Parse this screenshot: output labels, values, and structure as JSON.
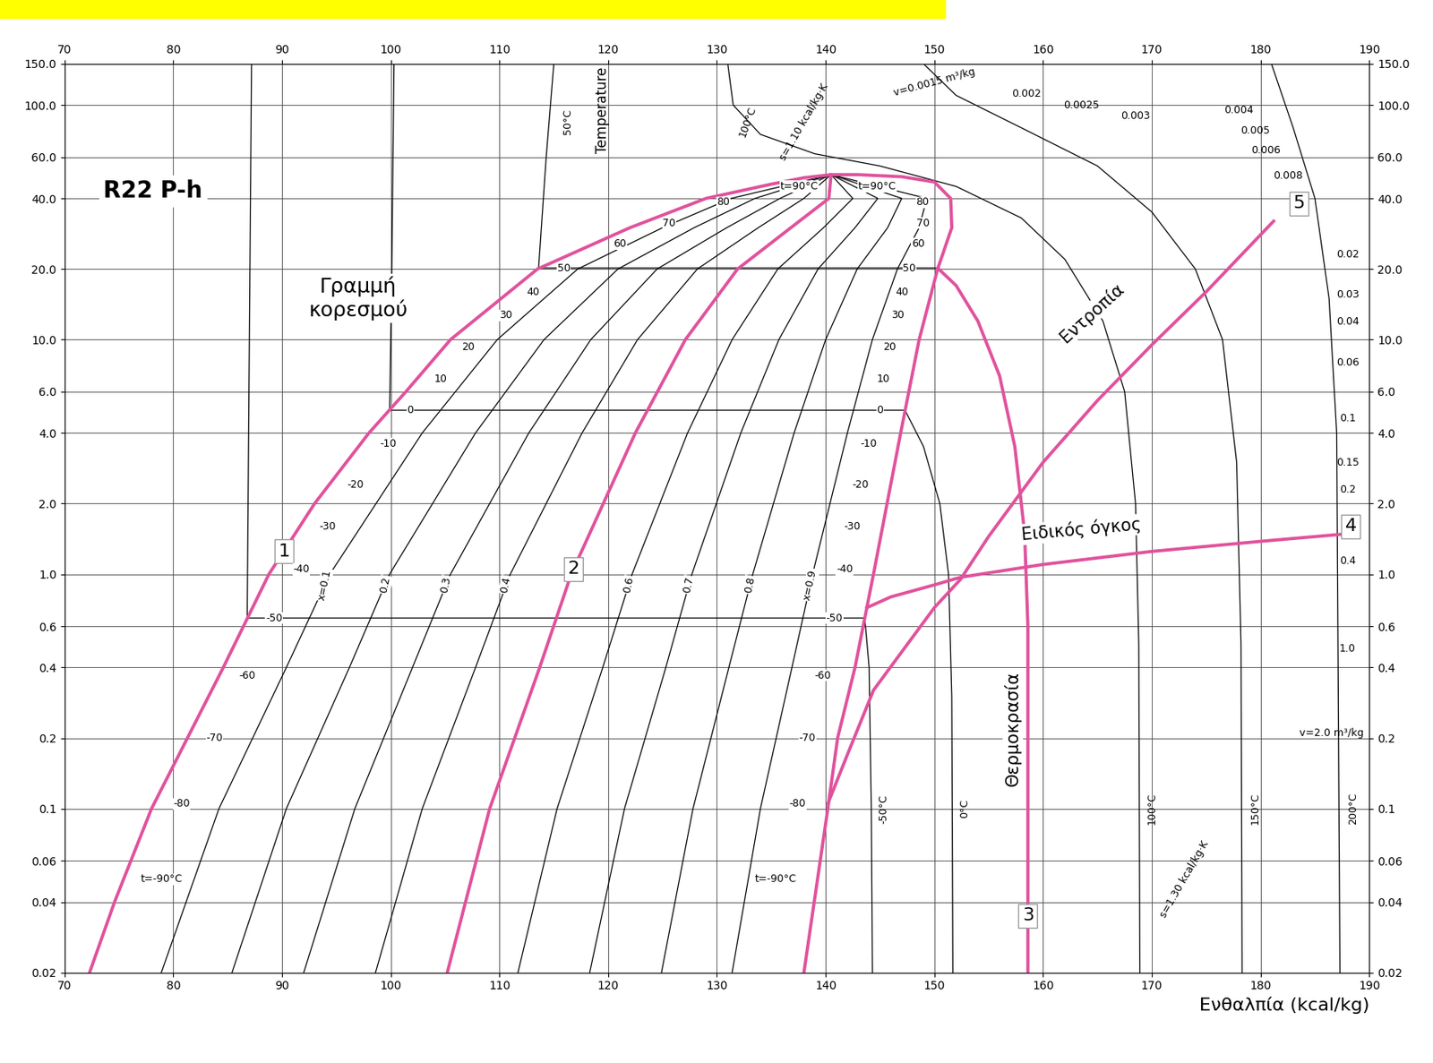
{
  "chart_data": {
    "type": "line",
    "title": "R22 P-h",
    "x_label": "Ενθαλπία (kcal/kg)",
    "log": "y",
    "grid": true,
    "xlim": [
      70,
      190
    ],
    "xticks": [
      70,
      80,
      90,
      100,
      110,
      120,
      130,
      140,
      150,
      160,
      170,
      180,
      190
    ],
    "ylim": [
      0.02,
      150
    ],
    "yticks": [
      0.02,
      0.04,
      0.06,
      0.1,
      0.2,
      0.4,
      0.6,
      {
        "value": 1,
        "label": "1.0"
      },
      {
        "value": 2,
        "label": "2.0"
      },
      {
        "value": 4,
        "label": "4.0"
      },
      {
        "value": 6,
        "label": "6.0"
      },
      {
        "value": 10,
        "label": "10.0"
      },
      {
        "value": 20,
        "label": "20.0"
      },
      {
        "value": 40,
        "label": "40.0"
      },
      {
        "value": 60,
        "label": "60.0"
      },
      {
        "value": 100,
        "label": "100.0"
      },
      {
        "value": 150,
        "label": "150.0"
      }
    ],
    "series": [
      {
        "color": "#e0529c",
        "x": [
          72.3,
          74.6,
          78,
          81.3,
          84.6,
          88.8,
          93,
          98,
          101.4,
          105.5,
          113.5,
          122,
          129,
          135,
          138,
          140.5,
          143,
          147,
          150,
          151.5,
          151.6,
          150.3,
          148.6,
          146.9,
          144.4,
          142.7,
          141.1,
          140.2,
          138
        ],
        "values": [
          0.02,
          0.04,
          0.1,
          0.2,
          0.4,
          1,
          2,
          4,
          6,
          10,
          20,
          30,
          40,
          46,
          49,
          50.5,
          50.5,
          49.5,
          47,
          40,
          30,
          20,
          10,
          4,
          1,
          0.4,
          0.2,
          0.1,
          0.02
        ]
      },
      {
        "color": "#000000",
        "x": [
          78.9,
          84.2,
          90.4,
          94.4,
          102.9,
          109.8,
          117.2,
          125.0,
          131.3,
          140.5
        ],
        "values": [
          0.02,
          0.1,
          0.4,
          1,
          4,
          10,
          20,
          30,
          40,
          50.5
        ]
      },
      {
        "color": "#000000",
        "x": [
          85.4,
          90.4,
          96.2,
          99.9,
          107.8,
          114.1,
          120.9,
          127.9,
          133.5,
          140.5
        ],
        "values": [
          0.02,
          0.1,
          0.4,
          1,
          4,
          10,
          20,
          30,
          40,
          50.5
        ]
      },
      {
        "color": "#000000",
        "x": [
          92.0,
          96.7,
          102.0,
          105.5,
          112.7,
          118.4,
          124.5,
          130.9,
          135.8,
          140.5
        ],
        "values": [
          0.02,
          0.1,
          0.4,
          1,
          4,
          10,
          20,
          30,
          40,
          50.5
        ]
      },
      {
        "color": "#000000",
        "x": [
          98.6,
          102.9,
          107.8,
          111.0,
          117.6,
          122.7,
          128.2,
          133.8,
          138.0,
          140.5
        ],
        "values": [
          0.02,
          0.1,
          0.4,
          1,
          4,
          10,
          20,
          30,
          40,
          50.5
        ]
      },
      {
        "color": "#e0529c",
        "x": [
          105.2,
          109.1,
          113.7,
          116.6,
          122.5,
          127.1,
          131.9,
          136.8,
          140.3,
          140.5
        ],
        "values": [
          0.02,
          0.1,
          0.4,
          1,
          4,
          10,
          20,
          30,
          40,
          50.5
        ]
      },
      {
        "color": "#000000",
        "x": [
          111.7,
          115.3,
          119.5,
          122.2,
          127.3,
          131.4,
          135.6,
          139.8,
          142.5,
          140.5
        ],
        "values": [
          0.02,
          0.1,
          0.4,
          1,
          4,
          10,
          20,
          30,
          40,
          50.5
        ]
      },
      {
        "color": "#000000",
        "x": [
          118.3,
          121.5,
          125.3,
          127.7,
          132.2,
          135.7,
          139.3,
          142.7,
          144.8,
          140.5
        ],
        "values": [
          0.02,
          0.1,
          0.4,
          1,
          4,
          10,
          20,
          30,
          40,
          50.5
        ]
      },
      {
        "color": "#000000",
        "x": [
          124.9,
          127.8,
          131.1,
          133.3,
          137.1,
          140.0,
          142.9,
          145.7,
          147.0,
          140.5
        ],
        "values": [
          0.02,
          0.1,
          0.4,
          1,
          4,
          10,
          20,
          30,
          40,
          50.5
        ]
      },
      {
        "color": "#000000",
        "x": [
          131.4,
          134.0,
          136.9,
          138.8,
          142.0,
          144.3,
          146.6,
          148.6,
          149.3,
          140.5
        ],
        "values": [
          0.02,
          0.1,
          0.4,
          1,
          4,
          10,
          20,
          30,
          40,
          50.5
        ]
      },
      {
        "color": "#000000",
        "x": [
          87.2,
          87.0,
          86.8,
          143.6,
          144.0,
          144.2,
          144.3
        ],
        "values": [
          150,
          10,
          0.65,
          0.65,
          0.4,
          0.1,
          0.02
        ]
      },
      {
        "color": "#000000",
        "x": [
          100.3,
          100.1,
          99.9,
          147.3,
          149.0,
          150.5,
          151.3,
          151.6,
          151.7
        ],
        "values": [
          150,
          20,
          5,
          5,
          3.5,
          2,
          1,
          0.3,
          0.02
        ]
      },
      {
        "color": "#000000",
        "x": [
          115.0,
          114.3,
          113.6,
          150.3
        ],
        "values": [
          150,
          60,
          20.2,
          20.2
        ]
      },
      {
        "color": "#e0529c",
        "x": [
          150.3,
          152.0,
          154.0,
          156.0,
          157.4,
          158.3,
          158.6,
          158.6
        ],
        "values": [
          20.2,
          17,
          12,
          7,
          3.5,
          1.5,
          0.6,
          0.02
        ]
      },
      {
        "color": "#000000",
        "x": [
          131.0,
          131.5,
          134.0,
          139.0,
          145.0,
          152.0,
          158.0,
          162.0,
          165.5,
          167.5,
          168.5,
          168.8,
          168.9
        ],
        "values": [
          150,
          100,
          75,
          62,
          55,
          45,
          33,
          22,
          12,
          6,
          2,
          0.5,
          0.02
        ]
      },
      {
        "color": "#000000",
        "x": [
          149,
          152,
          158,
          165,
          170,
          174,
          176.5,
          177.8,
          178.2,
          178.3
        ],
        "values": [
          150,
          110,
          80,
          55,
          35,
          20,
          10,
          3,
          0.5,
          0.02
        ]
      },
      {
        "color": "#000000",
        "x": [
          181,
          183,
          185,
          186.3,
          187,
          187.3
        ],
        "values": [
          150,
          80,
          40,
          15,
          4,
          0.02
        ]
      },
      {
        "color": "#e0529c",
        "x": [
          143.8,
          146,
          150,
          152.4,
          160,
          170,
          180,
          187.5
        ],
        "values": [
          0.72,
          0.8,
          0.9,
          0.97,
          1.1,
          1.25,
          1.38,
          1.48
        ]
      },
      {
        "color": "#e0529c",
        "x": [
          140.2,
          142,
          144.4,
          150,
          152.4,
          155,
          160,
          165,
          170,
          175,
          181.2
        ],
        "values": [
          0.105,
          0.17,
          0.32,
          0.72,
          0.95,
          1.45,
          3.0,
          5.5,
          9.5,
          16,
          32
        ]
      }
    ],
    "annotations": [
      {
        "text": "Γραμμή\nκορεσμού",
        "x": 97,
        "y": 15
      },
      {
        "text": "1",
        "x": 90.2,
        "y": 1.25
      },
      {
        "text": "2",
        "x": 116.8,
        "y": 1.05
      },
      {
        "text": "3",
        "x": 158.6,
        "y": 0.035
      },
      {
        "text": "4",
        "x": 188.3,
        "y": 1.6
      },
      {
        "text": "5",
        "x": 183.5,
        "y": 38
      },
      {
        "text": "Θερμοκρασία",
        "x": 157.2,
        "y": 0.22
      },
      {
        "text": "Εντροπία",
        "x": 164.5,
        "y": 13
      },
      {
        "text": "Ειδικός όγκος",
        "x": 163.5,
        "y": 1.55
      },
      {
        "text": "Temperature",
        "x": 119.5,
        "y": 95
      },
      {
        "text": "50°C",
        "x": 116.3,
        "y": 85
      },
      {
        "text": "100°C",
        "x": 132.8,
        "y": 85
      },
      {
        "text": "s=1.10 kcal/kg·K",
        "x": 138,
        "y": 85
      },
      {
        "text": "v=0.0015 m³/kg",
        "x": 150,
        "y": 125
      },
      {
        "text": "0.002",
        "x": 158.5,
        "y": 112
      },
      {
        "text": "0.0025",
        "x": 163.5,
        "y": 100
      },
      {
        "text": "0.003",
        "x": 168.5,
        "y": 90
      },
      {
        "text": "0.004",
        "x": 178,
        "y": 95
      },
      {
        "text": "0.005",
        "x": 179.5,
        "y": 78
      },
      {
        "text": "0.006",
        "x": 180.5,
        "y": 64
      },
      {
        "text": "0.008",
        "x": 182.5,
        "y": 50
      },
      {
        "text": "0.02",
        "x": 188,
        "y": 23
      },
      {
        "text": "0.03",
        "x": 188,
        "y": 15.5
      },
      {
        "text": "0.04",
        "x": 188,
        "y": 11.9
      },
      {
        "text": "0.06",
        "x": 188,
        "y": 8
      },
      {
        "text": "0.1",
        "x": 188,
        "y": 4.6
      },
      {
        "text": "0.15",
        "x": 188,
        "y": 3.0
      },
      {
        "text": "0.2",
        "x": 188,
        "y": 2.3
      },
      {
        "text": "0.4",
        "x": 188,
        "y": 1.14
      },
      {
        "text": "1.0",
        "x": 188,
        "y": 0.48
      },
      {
        "text": "v=2.0 m³/kg",
        "x": 186.5,
        "y": 0.21
      },
      {
        "text": "-50°C",
        "x": 145.3,
        "y": 0.1
      },
      {
        "text": "0°C",
        "x": 152.8,
        "y": 0.1
      },
      {
        "text": "100°C",
        "x": 170,
        "y": 0.1
      },
      {
        "text": "150°C",
        "x": 179.5,
        "y": 0.1
      },
      {
        "text": "200°C",
        "x": 188.5,
        "y": 0.1
      },
      {
        "text": "s=1.30 kcal/kg·K",
        "x": 173,
        "y": 0.05
      },
      {
        "text": "x=0.1",
        "x": 93.9,
        "y": 0.9
      },
      {
        "text": "0.2",
        "x": 99.5,
        "y": 0.9
      },
      {
        "text": "0.3",
        "x": 105.1,
        "y": 0.9
      },
      {
        "text": "0.4",
        "x": 110.6,
        "y": 0.9
      },
      {
        "text": "0.6",
        "x": 121.9,
        "y": 0.9
      },
      {
        "text": "0.7",
        "x": 127.4,
        "y": 0.9
      },
      {
        "text": "0.8",
        "x": 133.0,
        "y": 0.9
      },
      {
        "text": "x=0.9",
        "x": 138.6,
        "y": 0.9
      }
    ],
    "saturation_labels_liquid": [
      {
        "text": "t=90°C",
        "x": 135.8,
        "y": 45
      },
      {
        "text": "80",
        "x": 130,
        "y": 38.5
      },
      {
        "text": "70",
        "x": 125,
        "y": 31.4
      },
      {
        "text": "60",
        "x": 120.5,
        "y": 25.6
      },
      {
        "text": "50",
        "x": 115.3,
        "y": 20.2
      },
      {
        "text": "40",
        "x": 112.5,
        "y": 15.9
      },
      {
        "text": "30",
        "x": 110,
        "y": 12.7
      },
      {
        "text": "20",
        "x": 106.5,
        "y": 9.3
      },
      {
        "text": "10",
        "x": 104,
        "y": 6.8
      },
      {
        "text": "0",
        "x": 101.5,
        "y": 5
      },
      {
        "text": "-10",
        "x": 99,
        "y": 3.6
      },
      {
        "text": "-20",
        "x": 96,
        "y": 2.4
      },
      {
        "text": "-30",
        "x": 93.4,
        "y": 1.6
      },
      {
        "text": "-40",
        "x": 91,
        "y": 1.05
      },
      {
        "text": "-50",
        "x": 88.5,
        "y": 0.65
      },
      {
        "text": "-60",
        "x": 86,
        "y": 0.37
      },
      {
        "text": "-70",
        "x": 83,
        "y": 0.2
      },
      {
        "text": "-80",
        "x": 80,
        "y": 0.105
      },
      {
        "text": "t=-90°C",
        "x": 77,
        "y": 0.05
      }
    ],
    "saturation_labels_vapor": [
      {
        "text": "t=90°C",
        "x": 146.5,
        "y": 45
      },
      {
        "text": "80",
        "x": 149.5,
        "y": 38.5
      },
      {
        "text": "70",
        "x": 149.6,
        "y": 31.4
      },
      {
        "text": "60",
        "x": 149.1,
        "y": 25.6
      },
      {
        "text": "50",
        "x": 148.3,
        "y": 20.2
      },
      {
        "text": "40",
        "x": 147.6,
        "y": 15.9
      },
      {
        "text": "30",
        "x": 147.2,
        "y": 12.7
      },
      {
        "text": "20",
        "x": 146.5,
        "y": 9.3
      },
      {
        "text": "10",
        "x": 145.9,
        "y": 6.8
      },
      {
        "text": "0",
        "x": 145.3,
        "y": 5
      },
      {
        "text": "-10",
        "x": 144.7,
        "y": 3.6
      },
      {
        "text": "-20",
        "x": 144,
        "y": 2.4
      },
      {
        "text": "-30",
        "x": 143.2,
        "y": 1.6
      },
      {
        "text": "-40",
        "x": 142.5,
        "y": 1.05
      },
      {
        "text": "-50",
        "x": 141.6,
        "y": 0.65
      },
      {
        "text": "-60",
        "x": 140.5,
        "y": 0.37
      },
      {
        "text": "-70",
        "x": 139.1,
        "y": 0.2
      },
      {
        "text": "-80",
        "x": 138.2,
        "y": 0.105
      },
      {
        "text": "t=-90°C",
        "x": 137.3,
        "y": 0.05
      }
    ]
  }
}
